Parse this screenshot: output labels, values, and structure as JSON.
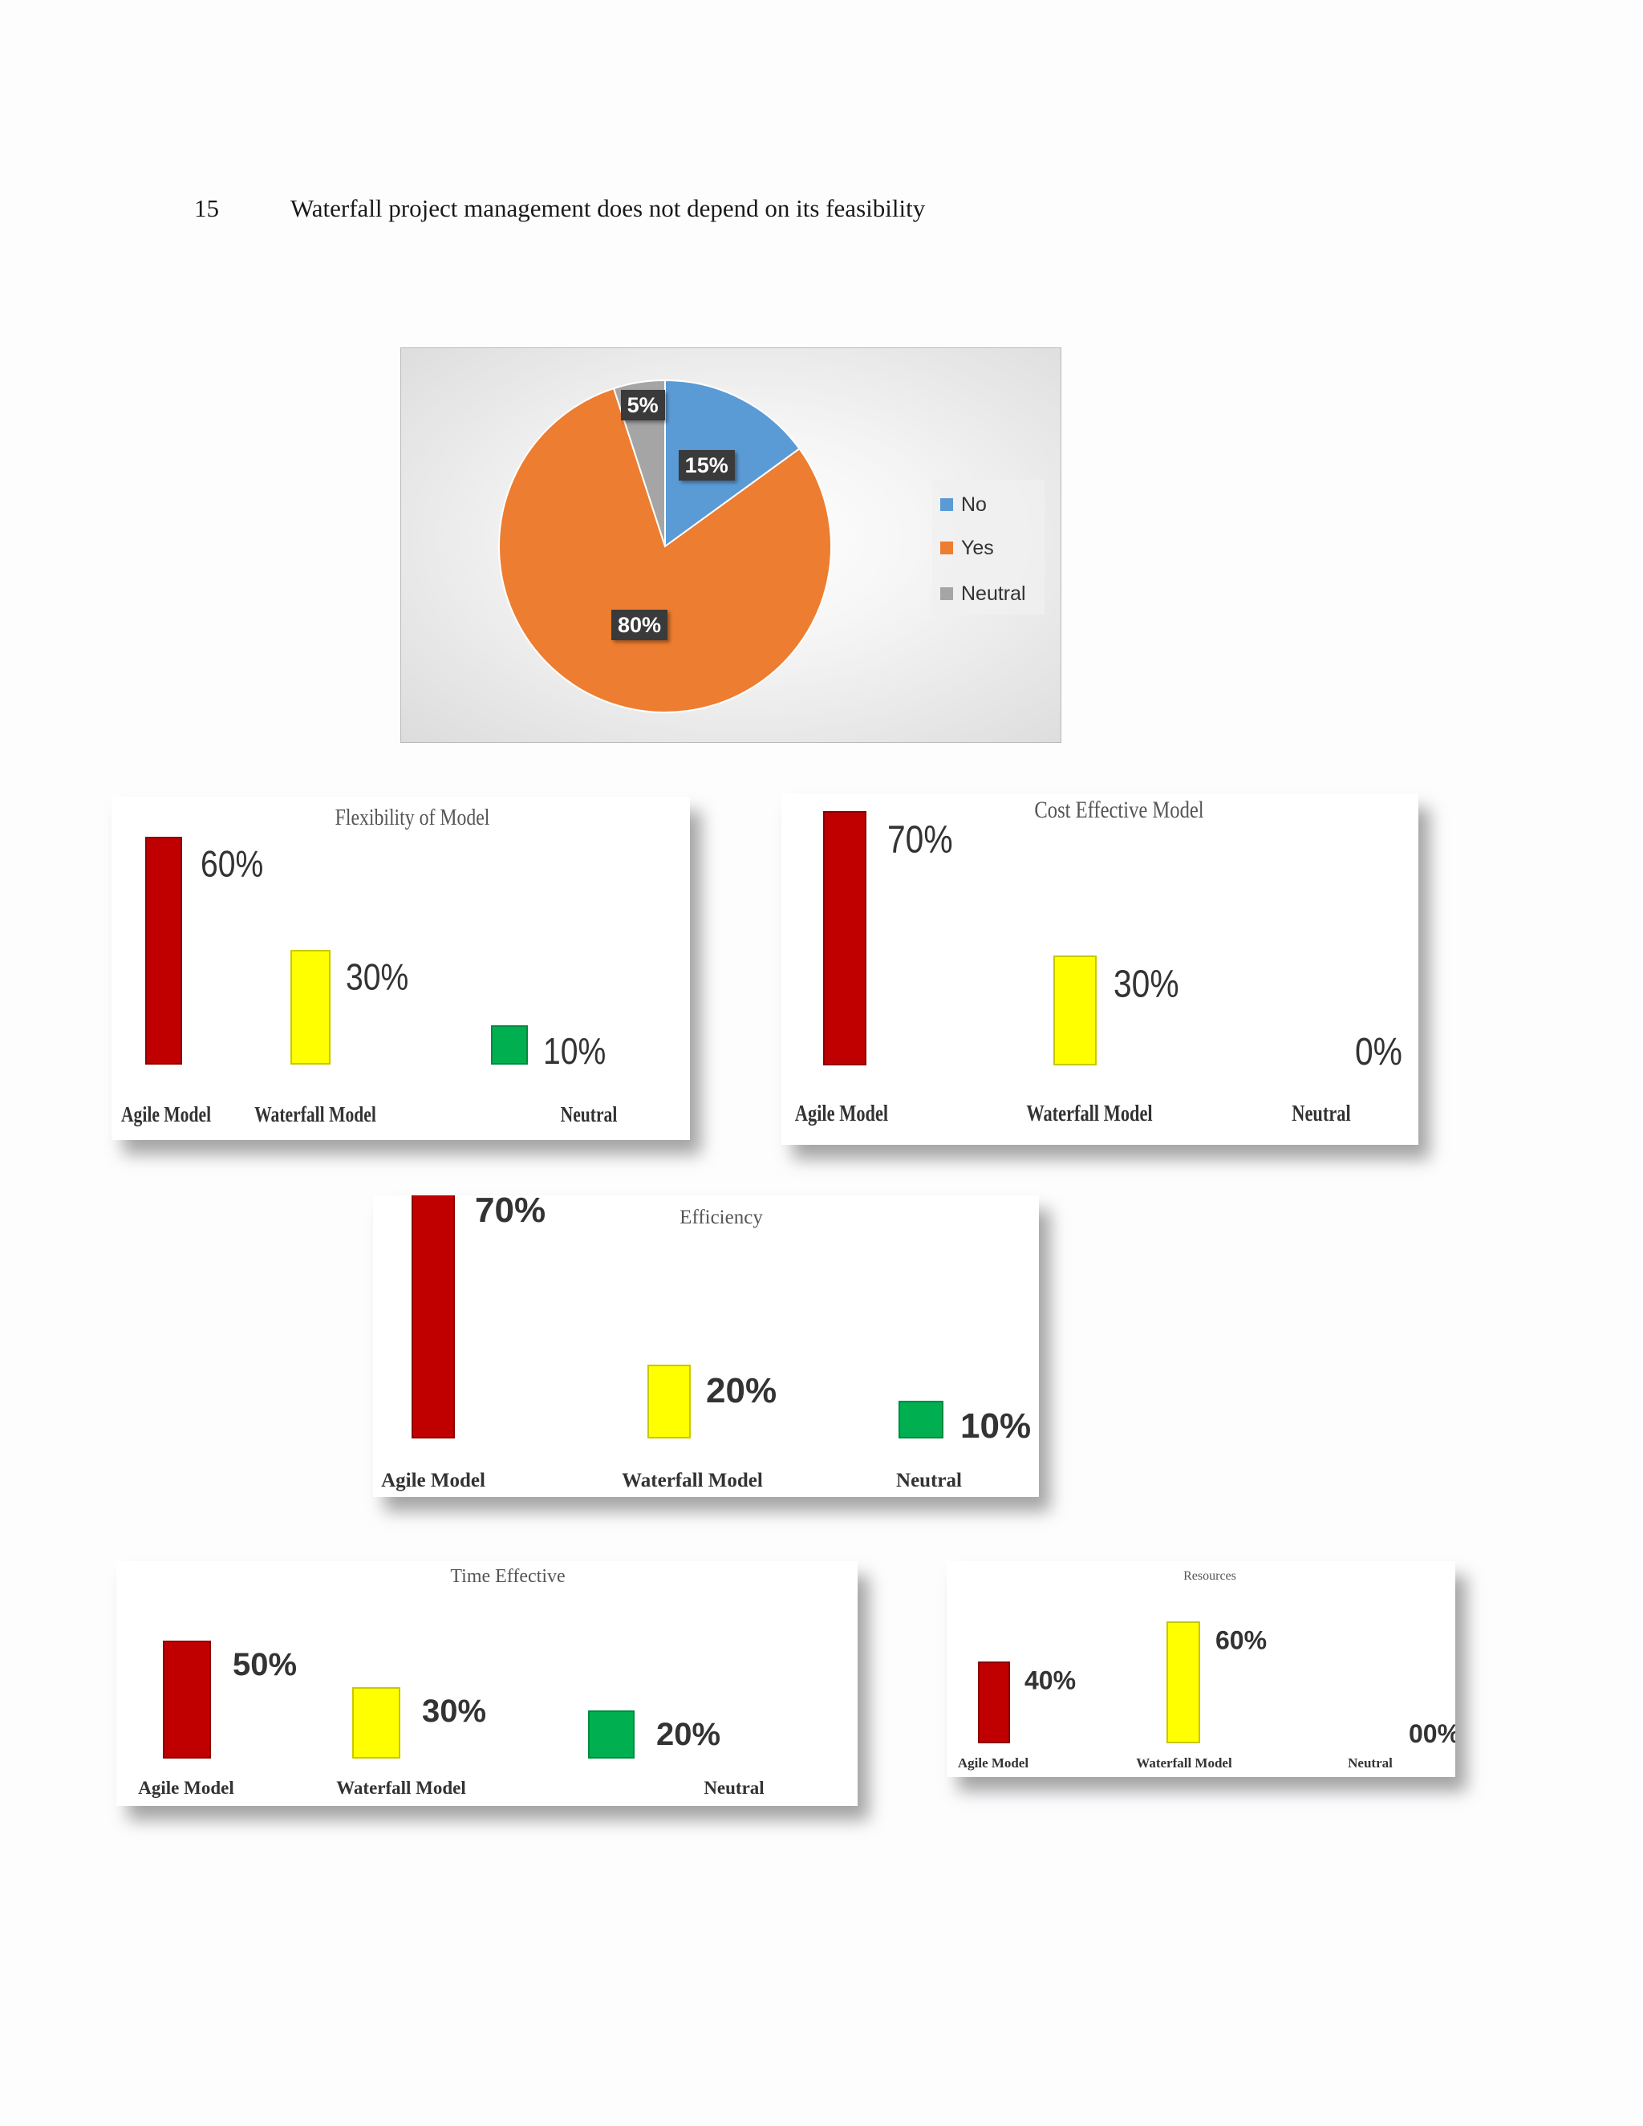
{
  "heading": {
    "number": "15",
    "text": "Waterfall project management  does not depend on its feasibility"
  },
  "pie": {
    "legend": [
      {
        "label": "No",
        "color": "#5b9bd5"
      },
      {
        "label": "Yes",
        "color": "#ed7d31"
      },
      {
        "label": "Neutral",
        "color": "#a5a5a5"
      }
    ],
    "labels": {
      "no": "15%",
      "yes": "80%",
      "neutral": "5%"
    }
  },
  "chart_data": [
    {
      "type": "pie",
      "categories": [
        "No",
        "Yes",
        "Neutral"
      ],
      "values": [
        15,
        80,
        5
      ],
      "value_labels": [
        "15%",
        "80%",
        "5%"
      ],
      "colors": [
        "#5b9bd5",
        "#ed7d31",
        "#a5a5a5"
      ],
      "legend": "right"
    },
    {
      "type": "bar",
      "title": "Flexibility of Model",
      "categories": [
        "Agile Model",
        "Waterfall Model",
        "Neutral"
      ],
      "values": [
        60,
        30,
        10
      ],
      "value_labels": [
        "60%",
        "30%",
        "10%"
      ],
      "colors": [
        "#c00000",
        "#ffff00",
        "#00b050"
      ]
    },
    {
      "type": "bar",
      "title": "Cost Effective Model",
      "categories": [
        "Agile Model",
        "Waterfall Model",
        "Neutral"
      ],
      "values": [
        70,
        30,
        0
      ],
      "value_labels": [
        "70%",
        "30%",
        "0%"
      ],
      "colors": [
        "#c00000",
        "#ffff00",
        "#00b050"
      ]
    },
    {
      "type": "bar",
      "title": "Efficiency",
      "categories": [
        "Agile Model",
        "Waterfall Model",
        "Neutral"
      ],
      "values": [
        70,
        20,
        10
      ],
      "value_labels": [
        "70%",
        "20%",
        "10%"
      ],
      "colors": [
        "#c00000",
        "#ffff00",
        "#00b050"
      ]
    },
    {
      "type": "bar",
      "title": "Time Effective",
      "categories": [
        "Agile Model",
        "Waterfall Model",
        "Neutral"
      ],
      "values": [
        50,
        30,
        20
      ],
      "value_labels": [
        "50%",
        "30%",
        "20%"
      ],
      "colors": [
        "#c00000",
        "#ffff00",
        "#00b050"
      ]
    },
    {
      "type": "bar",
      "title": "Resources",
      "categories": [
        "Agile Model",
        "Waterfall Model",
        "Neutral"
      ],
      "values": [
        40,
        60,
        0
      ],
      "value_labels": [
        "40%",
        "60%",
        "00%"
      ],
      "colors": [
        "#c00000",
        "#ffff00",
        "#00b050"
      ]
    }
  ]
}
